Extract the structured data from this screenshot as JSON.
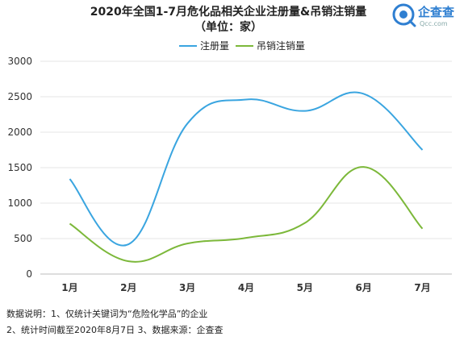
{
  "chart_data": {
    "type": "line",
    "title": "2020年全国1-7月危化品相关企业注册量&吊销注销量",
    "subtitle": "（单位：家）",
    "categories": [
      "1月",
      "2月",
      "3月",
      "4月",
      "5月",
      "6月",
      "7月"
    ],
    "series": [
      {
        "name": "注册量",
        "values": [
          1340,
          420,
          2120,
          2460,
          2300,
          2540,
          1750
        ],
        "color": "#3aa5e0"
      },
      {
        "name": "吊销注销量",
        "values": [
          710,
          180,
          430,
          510,
          720,
          1510,
          640
        ],
        "color": "#7cb83a"
      }
    ],
    "ylim": [
      0,
      3000
    ],
    "yticks": [
      0,
      500,
      1000,
      1500,
      2000,
      2500,
      3000
    ],
    "grid": true,
    "legend": "top"
  },
  "logo": {
    "name": "企查查",
    "sub": "Qcc.com",
    "icon": "qcc-logo-icon"
  },
  "notes": [
    "数据说明：1、仅统计关键词为“危险化学品”的企业",
    "2、统计时间截至2020年8月7日   3、数据来源：企查查"
  ]
}
